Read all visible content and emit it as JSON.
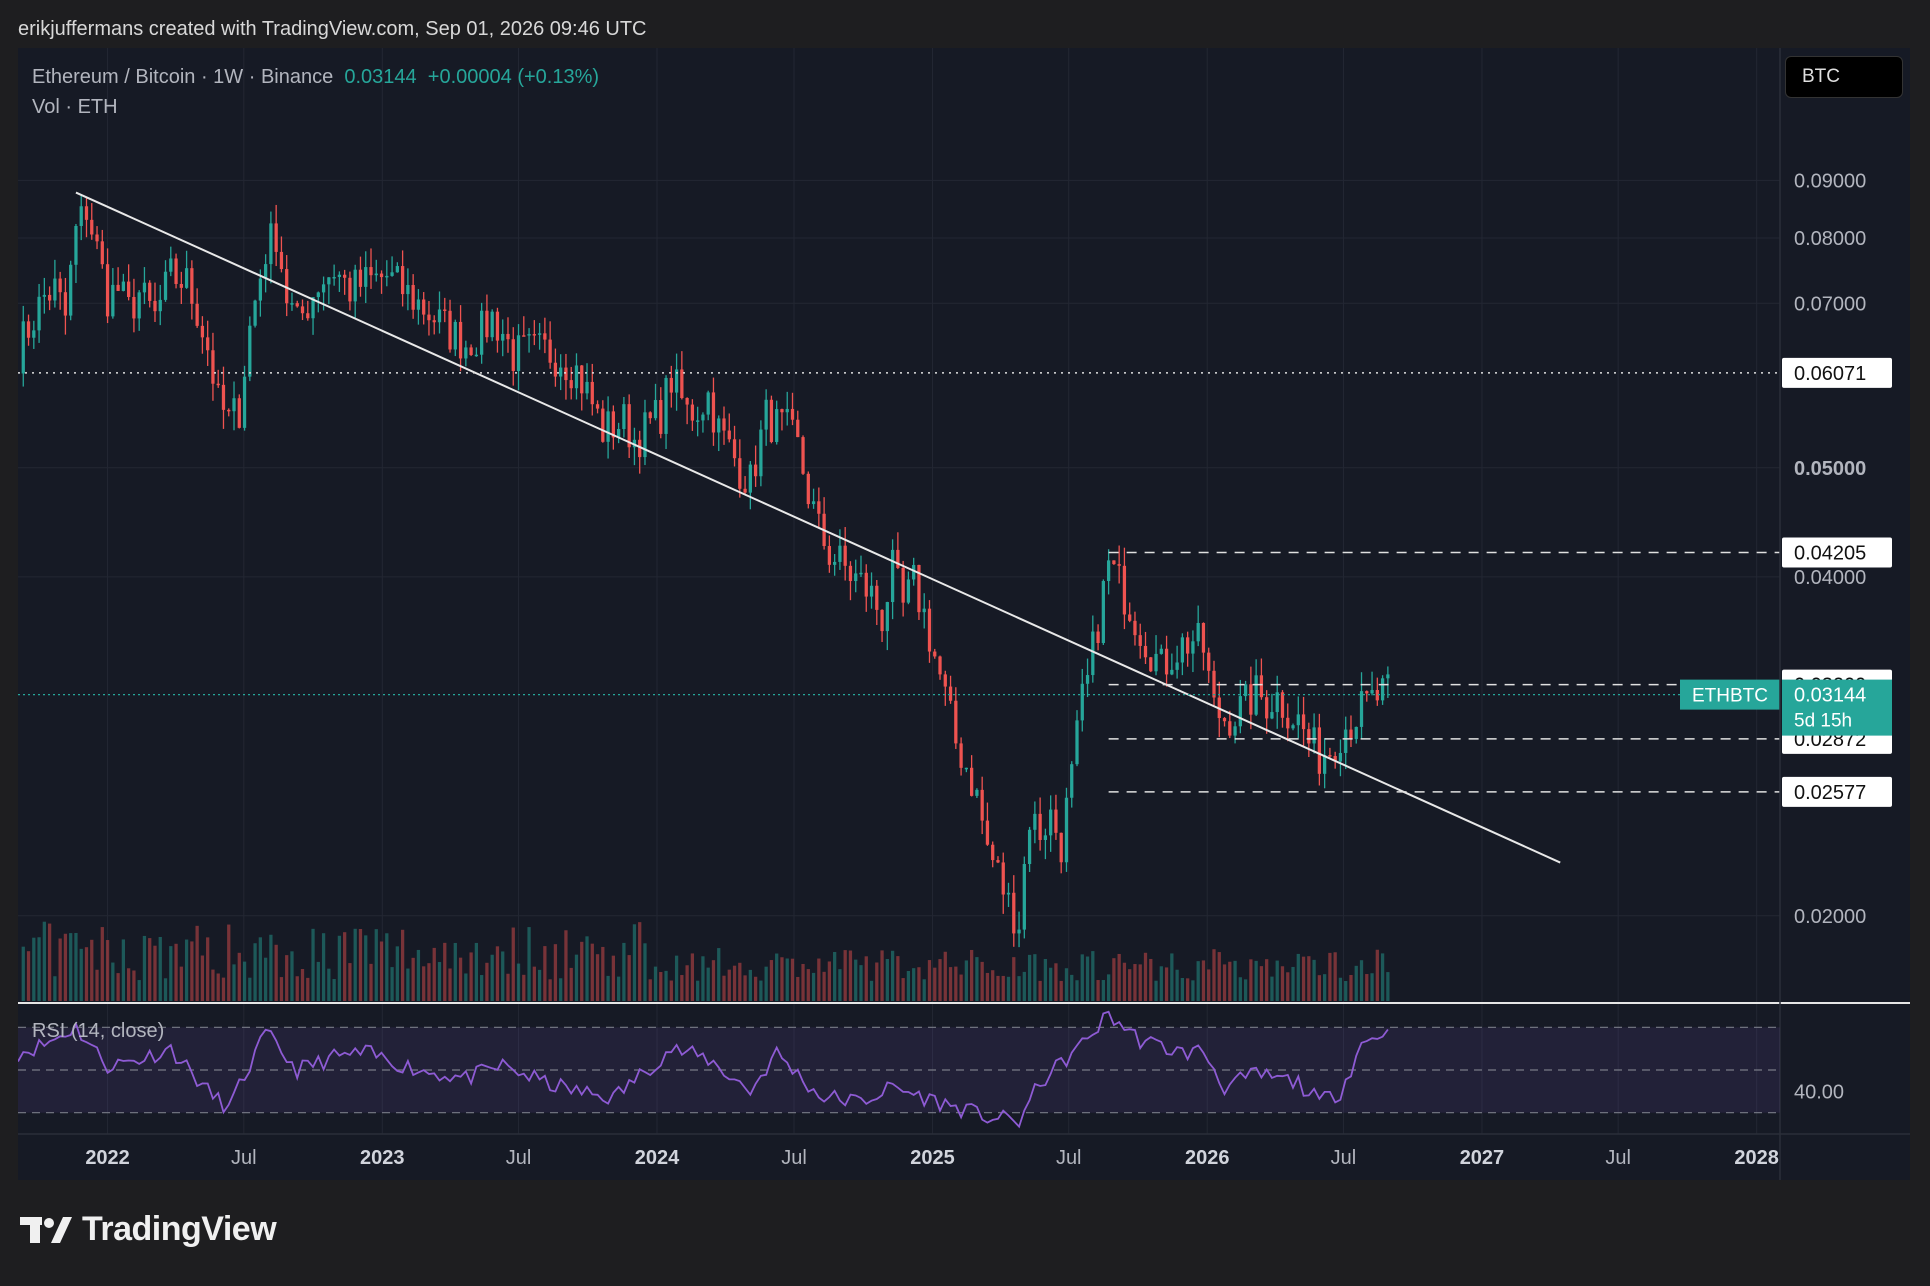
{
  "header": {
    "attribution": "erikjuffermans created with TradingView.com, Sep 01, 2026 09:46 UTC"
  },
  "legend": {
    "symbol": "Ethereum / Bitcoin · 1W · Binance",
    "price": "0.03144",
    "change": "+0.00004 (+0.13%)",
    "volume": "Vol · ETH"
  },
  "currency_button": "BTC",
  "rsi_label": "RSI (14, close)",
  "brand": "TradingView",
  "colors": {
    "up": "#26a69a",
    "down": "#ef5350",
    "rsi": "#8e5bd4",
    "bg": "#161a25"
  },
  "chart_data": {
    "type": "candlestick",
    "symbol": "ETHBTC",
    "interval": "1W",
    "y_scale": "log",
    "ylim": [
      0.0168,
      0.118
    ],
    "y_ticks": [
      0.02,
      0.04,
      0.05,
      0.07,
      0.08,
      0.09
    ],
    "y_tick_labels": [
      "0.02000",
      "0.04000",
      "0.05000",
      "0.07000",
      "0.08000",
      "0.09000"
    ],
    "x_range": [
      "2021-09-04",
      "2028-02-01"
    ],
    "x_tick_labels": [
      {
        "date": "2022-01-01",
        "label": "2022",
        "bold": true
      },
      {
        "date": "2022-07-01",
        "label": "Jul",
        "bold": false
      },
      {
        "date": "2023-01-01",
        "label": "2023",
        "bold": true
      },
      {
        "date": "2023-07-01",
        "label": "Jul",
        "bold": false
      },
      {
        "date": "2024-01-01",
        "label": "2024",
        "bold": true
      },
      {
        "date": "2024-07-01",
        "label": "Jul",
        "bold": false
      },
      {
        "date": "2025-01-01",
        "label": "2025",
        "bold": true
      },
      {
        "date": "2025-07-01",
        "label": "Jul",
        "bold": false
      },
      {
        "date": "2026-01-01",
        "label": "2026",
        "bold": true
      },
      {
        "date": "2026-07-01",
        "label": "Jul",
        "bold": false
      },
      {
        "date": "2027-01-01",
        "label": "2027",
        "bold": true
      },
      {
        "date": "2027-07-01",
        "label": "Jul",
        "bold": false
      },
      {
        "date": "2028-01-01",
        "label": "2028",
        "bold": true
      }
    ],
    "close_path": [
      [
        "2021-09-04",
        0.0635
      ],
      [
        "2021-09-25",
        0.068
      ],
      [
        "2021-10-09",
        0.071
      ],
      [
        "2021-10-23",
        0.072
      ],
      [
        "2021-11-06",
        0.068
      ],
      [
        "2021-11-20",
        0.081
      ],
      [
        "2021-12-04",
        0.085
      ],
      [
        "2021-12-18",
        0.078
      ],
      [
        "2022-01-01",
        0.071
      ],
      [
        "2022-01-15",
        0.072
      ],
      [
        "2022-01-29",
        0.069
      ],
      [
        "2022-02-12",
        0.0715
      ],
      [
        "2022-03-05",
        0.068
      ],
      [
        "2022-03-26",
        0.074
      ],
      [
        "2022-04-16",
        0.073
      ],
      [
        "2022-04-30",
        0.069
      ],
      [
        "2022-05-14",
        0.064
      ],
      [
        "2022-05-28",
        0.057
      ],
      [
        "2022-06-11",
        0.055
      ],
      [
        "2022-06-25",
        0.0565
      ],
      [
        "2022-07-09",
        0.0665
      ],
      [
        "2022-07-30",
        0.078
      ],
      [
        "2022-08-13",
        0.081
      ],
      [
        "2022-08-27",
        0.071
      ],
      [
        "2022-09-10",
        0.067
      ],
      [
        "2022-09-24",
        0.07
      ],
      [
        "2022-10-08",
        0.073
      ],
      [
        "2022-10-29",
        0.075
      ],
      [
        "2022-11-19",
        0.072
      ],
      [
        "2022-12-10",
        0.073
      ],
      [
        "2023-01-07",
        0.074
      ],
      [
        "2023-01-28",
        0.072
      ],
      [
        "2023-02-18",
        0.07
      ],
      [
        "2023-03-11",
        0.068
      ],
      [
        "2023-04-01",
        0.066
      ],
      [
        "2023-04-22",
        0.0645
      ],
      [
        "2023-05-13",
        0.066
      ],
      [
        "2023-05-27",
        0.068
      ],
      [
        "2023-06-10",
        0.066
      ],
      [
        "2023-06-24",
        0.063
      ],
      [
        "2023-07-15",
        0.0635
      ],
      [
        "2023-08-05",
        0.0635
      ],
      [
        "2023-08-26",
        0.0628
      ],
      [
        "2023-09-16",
        0.061
      ],
      [
        "2023-10-07",
        0.057
      ],
      [
        "2023-10-21",
        0.054
      ],
      [
        "2023-11-04",
        0.0545
      ],
      [
        "2023-11-18",
        0.055
      ],
      [
        "2023-12-02",
        0.053
      ],
      [
        "2023-12-16",
        0.054
      ],
      [
        "2024-01-06",
        0.056
      ],
      [
        "2024-01-20",
        0.06
      ],
      [
        "2024-02-10",
        0.056
      ],
      [
        "2024-02-24",
        0.0565
      ],
      [
        "2024-03-09",
        0.058
      ],
      [
        "2024-03-23",
        0.054
      ],
      [
        "2024-04-06",
        0.052
      ],
      [
        "2024-04-20",
        0.05
      ],
      [
        "2024-05-04",
        0.0485
      ],
      [
        "2024-05-25",
        0.0555
      ],
      [
        "2024-06-08",
        0.0545
      ],
      [
        "2024-06-22",
        0.054
      ],
      [
        "2024-07-06",
        0.052
      ],
      [
        "2024-07-20",
        0.0475
      ],
      [
        "2024-08-03",
        0.044
      ],
      [
        "2024-08-17",
        0.042
      ],
      [
        "2024-08-31",
        0.0412
      ],
      [
        "2024-09-14",
        0.0402
      ],
      [
        "2024-09-28",
        0.0395
      ],
      [
        "2024-10-12",
        0.0385
      ],
      [
        "2024-10-26",
        0.0368
      ],
      [
        "2024-11-09",
        0.0405
      ],
      [
        "2024-11-23",
        0.0375
      ],
      [
        "2024-12-07",
        0.0395
      ],
      [
        "2024-12-21",
        0.037
      ],
      [
        "2025-01-04",
        0.034
      ],
      [
        "2025-01-18",
        0.0312
      ],
      [
        "2025-02-01",
        0.0285
      ],
      [
        "2025-02-15",
        0.0272
      ],
      [
        "2025-03-01",
        0.0255
      ],
      [
        "2025-03-15",
        0.023
      ],
      [
        "2025-03-29",
        0.0218
      ],
      [
        "2025-04-12",
        0.0205
      ],
      [
        "2025-04-26",
        0.0198
      ],
      [
        "2025-05-10",
        0.0245
      ],
      [
        "2025-05-24",
        0.0238
      ],
      [
        "2025-06-07",
        0.0245
      ],
      [
        "2025-06-21",
        0.0232
      ],
      [
        "2025-07-05",
        0.0265
      ],
      [
        "2025-07-19",
        0.031
      ],
      [
        "2025-07-26",
        0.0322
      ],
      [
        "2025-08-09",
        0.0365
      ],
      [
        "2025-08-23",
        0.041
      ],
      [
        "2025-09-06",
        0.0395
      ],
      [
        "2025-09-20",
        0.0378
      ],
      [
        "2025-10-04",
        0.036
      ],
      [
        "2025-10-18",
        0.0345
      ],
      [
        "2025-11-01",
        0.0332
      ],
      [
        "2025-11-15",
        0.0342
      ],
      [
        "2025-11-29",
        0.0348
      ],
      [
        "2025-12-13",
        0.0352
      ],
      [
        "2025-12-27",
        0.0345
      ],
      [
        "2026-01-10",
        0.0305
      ],
      [
        "2026-01-24",
        0.03
      ],
      [
        "2026-02-07",
        0.0302
      ],
      [
        "2026-02-21",
        0.0308
      ],
      [
        "2026-03-07",
        0.0315
      ],
      [
        "2026-03-21",
        0.031
      ],
      [
        "2026-04-04",
        0.0313
      ],
      [
        "2026-04-18",
        0.0305
      ],
      [
        "2026-05-02",
        0.0298
      ],
      [
        "2026-05-16",
        0.0285
      ],
      [
        "2026-05-30",
        0.0278
      ],
      [
        "2026-06-13",
        0.0282
      ],
      [
        "2026-06-27",
        0.0292
      ],
      [
        "2026-07-11",
        0.0298
      ],
      [
        "2026-07-25",
        0.0305
      ],
      [
        "2026-08-08",
        0.031
      ],
      [
        "2026-08-22",
        0.0315
      ],
      [
        "2026-09-01",
        0.03144
      ]
    ],
    "trendline": [
      [
        "2021-11-20",
        0.0878
      ],
      [
        "2027-04-15",
        0.0223
      ]
    ],
    "horizontal_levels": [
      {
        "value": 0.06071,
        "label": "0.06071",
        "style": "dotted"
      },
      {
        "value": 0.04205,
        "label": "0.04205",
        "style": "dashed"
      },
      {
        "value": 0.03209,
        "label": "0.03209",
        "style": "dashed"
      },
      {
        "value": 0.02872,
        "label": "0.02872",
        "style": "dashed"
      },
      {
        "value": 0.02577,
        "label": "0.02577",
        "style": "dashed"
      }
    ],
    "last_price": {
      "symbol": "ETHBTC",
      "value": "0.03144",
      "countdown": "5d 15h"
    },
    "rsi": {
      "length": 14,
      "upper": 70,
      "lower": 30,
      "tick_labels": [
        "40.00"
      ],
      "range": [
        20,
        80
      ],
      "path": [
        [
          "2021-09-04",
          58
        ],
        [
          "2021-10-09",
          62
        ],
        [
          "2021-11-20",
          70
        ],
        [
          "2022-01-01",
          52
        ],
        [
          "2022-02-12",
          55
        ],
        [
          "2022-03-26",
          60
        ],
        [
          "2022-05-14",
          40
        ],
        [
          "2022-06-11",
          32
        ],
        [
          "2022-07-30",
          67
        ],
        [
          "2022-09-10",
          50
        ],
        [
          "2022-10-29",
          56
        ],
        [
          "2022-12-10",
          58
        ],
        [
          "2023-02-18",
          50
        ],
        [
          "2023-04-22",
          46
        ],
        [
          "2023-06-10",
          52
        ],
        [
          "2023-08-05",
          44
        ],
        [
          "2023-09-16",
          40
        ],
        [
          "2023-11-04",
          37
        ],
        [
          "2024-01-20",
          60
        ],
        [
          "2024-03-09",
          55
        ],
        [
          "2024-05-04",
          40
        ],
        [
          "2024-06-08",
          58
        ],
        [
          "2024-08-03",
          38
        ],
        [
          "2024-09-28",
          35
        ],
        [
          "2024-11-09",
          42
        ],
        [
          "2025-01-18",
          34
        ],
        [
          "2025-03-15",
          28
        ],
        [
          "2025-04-26",
          26
        ],
        [
          "2025-05-24",
          44
        ],
        [
          "2025-07-19",
          62
        ],
        [
          "2025-08-23",
          76
        ],
        [
          "2025-10-04",
          64
        ],
        [
          "2025-11-29",
          58
        ],
        [
          "2025-12-27",
          59
        ],
        [
          "2026-01-24",
          42
        ],
        [
          "2026-03-07",
          48
        ],
        [
          "2026-05-02",
          44
        ],
        [
          "2026-05-30",
          35
        ],
        [
          "2026-06-27",
          40
        ],
        [
          "2026-07-25",
          62
        ],
        [
          "2026-08-22",
          68
        ],
        [
          "2026-09-01",
          66
        ]
      ]
    }
  }
}
